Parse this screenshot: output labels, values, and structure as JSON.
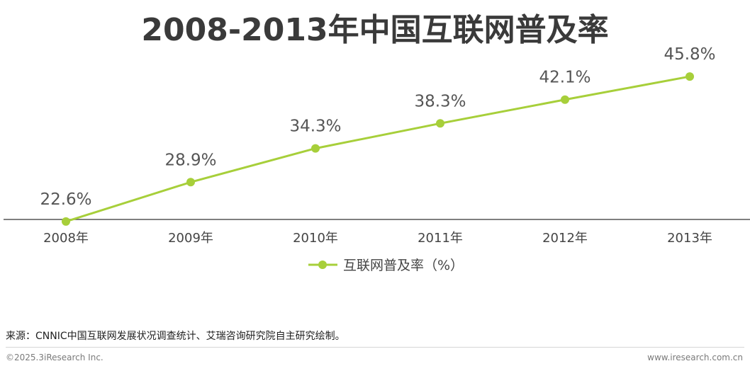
{
  "chart_data": {
    "type": "line",
    "title": "2008-2013年中国互联网普及率",
    "categories": [
      "2008年",
      "2009年",
      "2010年",
      "2011年",
      "2012年",
      "2013年"
    ],
    "series": [
      {
        "name": "互联网普及率（%）",
        "values": [
          22.6,
          28.9,
          34.3,
          38.3,
          42.1,
          45.8
        ],
        "labels": [
          "22.6%",
          "28.9%",
          "34.3%",
          "38.3%",
          "42.1%",
          "45.8%"
        ],
        "color": "#a7cf3a"
      }
    ],
    "xlabel": "",
    "ylabel": "",
    "ylim": [
      15,
      50
    ],
    "grid": false,
    "legend_position": "bottom-center"
  },
  "footer": {
    "source": "来源：CNNIC中国互联网发展状况调查统计、艾瑞咨询研究院自主研究绘制。",
    "copyright": "©2025.3iResearch Inc.",
    "website": "www.iresearch.com.cn"
  },
  "colors": {
    "accent": "#a7cf3a",
    "axis": "#555555",
    "label": "#555555",
    "title": "#3a3a3a"
  }
}
